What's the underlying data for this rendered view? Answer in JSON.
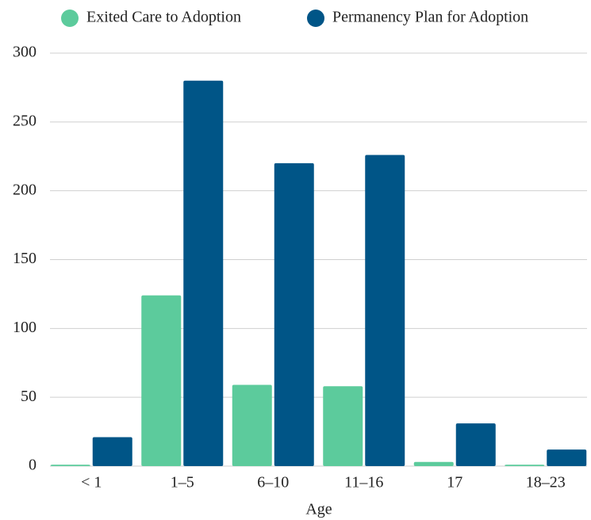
{
  "chart_data": {
    "type": "bar",
    "x_label": "Age",
    "categories": [
      "< 1",
      "1–5",
      "6–10",
      "11–16",
      "17",
      "18–23"
    ],
    "series": [
      {
        "name": "Exited Care to Adoption",
        "color": "#5ccb9c",
        "values": [
          1,
          124,
          59,
          58,
          3,
          1
        ]
      },
      {
        "name": "Permanency Plan for Adoption",
        "color": "#005587",
        "values": [
          21,
          280,
          220,
          226,
          31,
          12
        ]
      }
    ],
    "ylim": [
      0,
      300
    ],
    "yticks": [
      0,
      50,
      100,
      150,
      200,
      250,
      300
    ],
    "grid": true,
    "legend": "top"
  }
}
